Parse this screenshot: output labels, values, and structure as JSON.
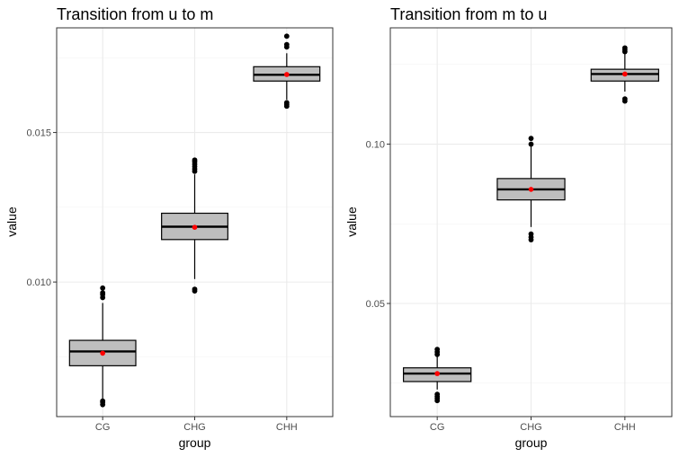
{
  "chart_data": [
    {
      "type": "box",
      "title": "Transition from u to m",
      "xlabel": "group",
      "ylabel": "value",
      "categories": [
        "CG",
        "CHG",
        "CHH"
      ],
      "ylim": [
        0.0055,
        0.0185
      ],
      "yticks": [
        0.01,
        0.015
      ],
      "ytick_labels": [
        "0.010",
        "0.015"
      ],
      "grid": true,
      "colors": {
        "box_fill": "#bebebe",
        "box_stroke": "#000000",
        "mean_point": "#ff0000",
        "outlier": "#000000"
      },
      "boxes": [
        {
          "category": "CG",
          "whisker_low": 0.006,
          "q1": 0.0072,
          "median": 0.00768,
          "q3": 0.00805,
          "whisker_high": 0.0093,
          "mean": 0.00762,
          "outliers": [
            0.0059,
            0.00598,
            0.00602,
            0.00948,
            0.00958,
            0.00964,
            0.0098
          ]
        },
        {
          "category": "CHG",
          "whisker_low": 0.0101,
          "q1": 0.01142,
          "median": 0.01185,
          "q3": 0.0123,
          "whisker_high": 0.0136,
          "mean": 0.01183,
          "outliers": [
            0.0097,
            0.00976,
            0.0137,
            0.01378,
            0.01386,
            0.01394,
            0.01402,
            0.01408
          ]
        },
        {
          "category": "CHH",
          "whisker_low": 0.0161,
          "q1": 0.01672,
          "median": 0.01693,
          "q3": 0.0172,
          "whisker_high": 0.01765,
          "mean": 0.01694,
          "outliers": [
            0.01588,
            0.01594,
            0.016,
            0.01786,
            0.01794,
            0.01822
          ]
        }
      ]
    },
    {
      "type": "box",
      "title": "Transition from m to u",
      "xlabel": "group",
      "ylabel": "value",
      "categories": [
        "CG",
        "CHG",
        "CHH"
      ],
      "ylim": [
        0.0145,
        0.1365
      ],
      "yticks": [
        0.05,
        0.1
      ],
      "ytick_labels": [
        "0.05",
        "0.10"
      ],
      "grid": true,
      "colors": {
        "box_fill": "#bebebe",
        "box_stroke": "#000000",
        "mean_point": "#ff0000",
        "outlier": "#000000"
      },
      "boxes": [
        {
          "category": "CG",
          "whisker_low": 0.023,
          "q1": 0.0255,
          "median": 0.028,
          "q3": 0.0298,
          "whisker_high": 0.0335,
          "mean": 0.028,
          "outliers": [
            0.0195,
            0.0202,
            0.0208,
            0.0215,
            0.034,
            0.0348,
            0.0356
          ]
        },
        {
          "category": "CHG",
          "whisker_low": 0.074,
          "q1": 0.0825,
          "median": 0.0858,
          "q3": 0.0892,
          "whisker_high": 0.0995,
          "mean": 0.0858,
          "outliers": [
            0.07,
            0.0708,
            0.0718,
            0.1,
            0.1018
          ]
        },
        {
          "category": "CHH",
          "whisker_low": 0.1165,
          "q1": 0.1198,
          "median": 0.122,
          "q3": 0.1235,
          "whisker_high": 0.1283,
          "mean": 0.122,
          "outliers": [
            0.1135,
            0.1142,
            0.129,
            0.1296,
            0.1302
          ]
        }
      ]
    }
  ]
}
